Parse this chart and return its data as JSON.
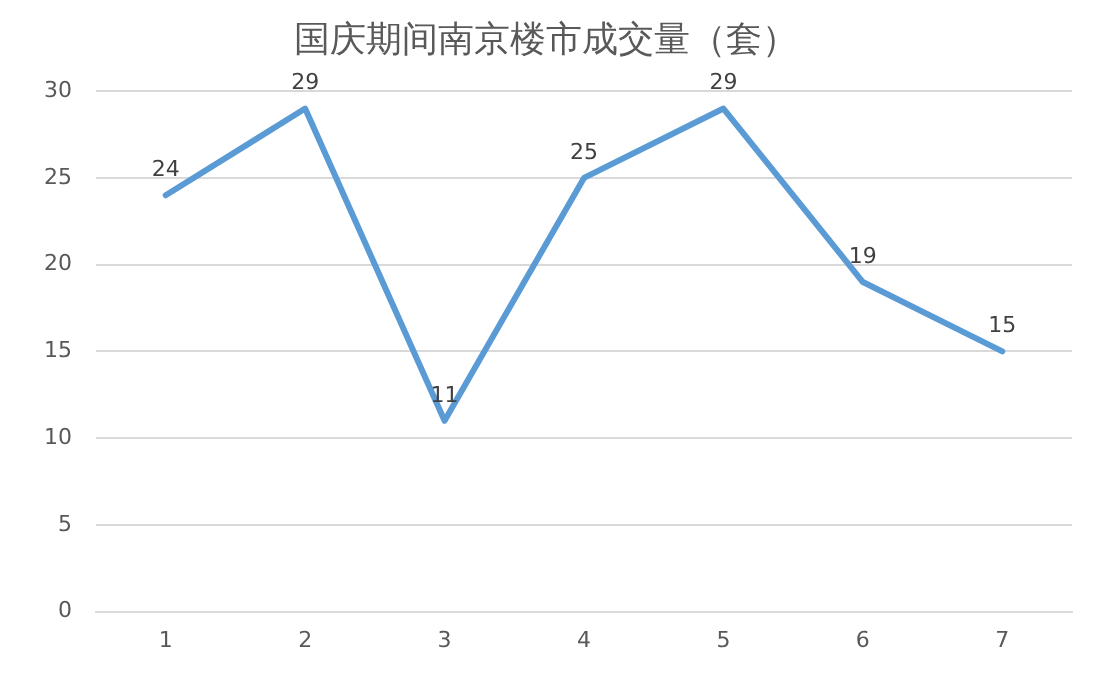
{
  "chart_data": {
    "type": "line",
    "title": "国庆期间南京楼市成交量（套）",
    "categories": [
      "1",
      "2",
      "3",
      "4",
      "5",
      "6",
      "7"
    ],
    "series": [
      {
        "color": "#5b9bd5",
        "values": [
          24,
          29,
          11,
          25,
          29,
          19,
          15
        ]
      }
    ],
    "ylim": [
      0,
      30
    ],
    "yticks": [
      0,
      5,
      10,
      15,
      20,
      25,
      30
    ],
    "grid": "y",
    "data_labels": true,
    "marker": "none",
    "line_style": "solid",
    "legend": false
  }
}
